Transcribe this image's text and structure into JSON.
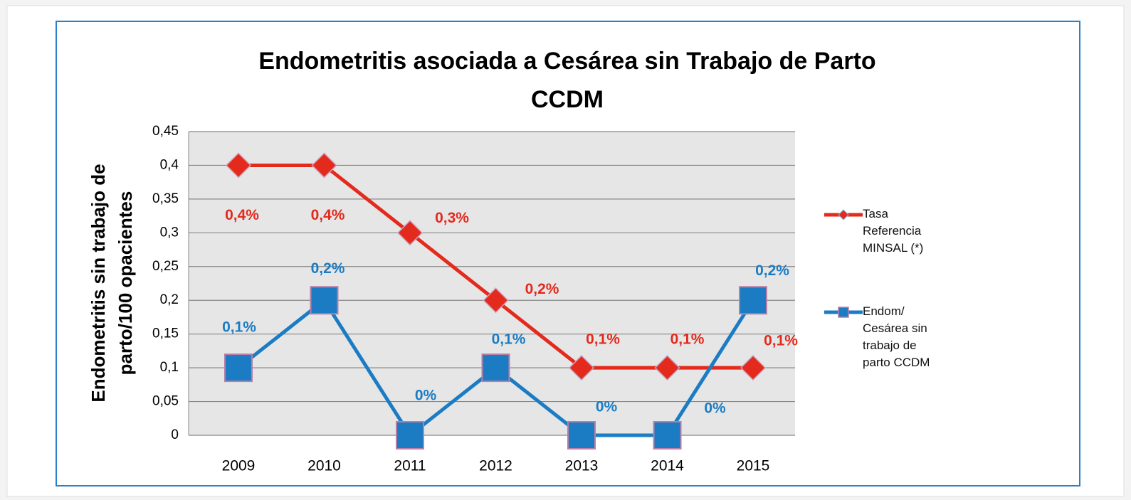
{
  "chart_data": {
    "type": "line",
    "title": [
      "Endometritis asociada a Cesárea sin Trabajo de Parto",
      "CCDM"
    ],
    "y_label": [
      "Endometritis  sin trabajo de",
      "parto/100 opacientes"
    ],
    "categories": [
      "2009",
      "2010",
      "2011",
      "2012",
      "2013",
      "2014",
      "2015"
    ],
    "series": [
      {
        "name": "Tasa Referencia MINSAL (*)",
        "color": "#e32a1c",
        "marker": "diamond",
        "values": [
          0.4,
          0.4,
          0.3,
          0.2,
          0.1,
          0.1,
          0.1
        ],
        "value_labels": [
          "0,4%",
          "0,4%",
          "0,3%",
          "0,2%",
          "0,1%",
          "0,1%",
          "0,1%"
        ]
      },
      {
        "name": "Endom/ Cesárea sin trabajo de parto CCDM",
        "color": "#1b7cc4",
        "marker": "square",
        "values": [
          0.1,
          0.2,
          0,
          0.1,
          0,
          0,
          0.2
        ],
        "value_labels": [
          "0,1%",
          "0,2%",
          "0%",
          "0,1%",
          "0%",
          "0%",
          "0,2%"
        ]
      }
    ],
    "ylim": [
      0,
      0.45
    ],
    "yticks": [
      0,
      {
        "value": 0.05,
        "label": "0,05"
      },
      {
        "value": 0.1,
        "label": "0,1"
      },
      {
        "value": 0.15,
        "label": "0,15"
      },
      {
        "value": 0.2,
        "label": "0,2"
      },
      {
        "value": 0.25,
        "label": "0,25"
      },
      {
        "value": 0.3,
        "label": "0,3"
      },
      {
        "value": 0.35,
        "label": "0,35"
      },
      {
        "value": 0.4,
        "label": "0,4"
      },
      {
        "value": 0.45,
        "label": "0,45"
      }
    ],
    "grid": true,
    "legend": "right"
  }
}
